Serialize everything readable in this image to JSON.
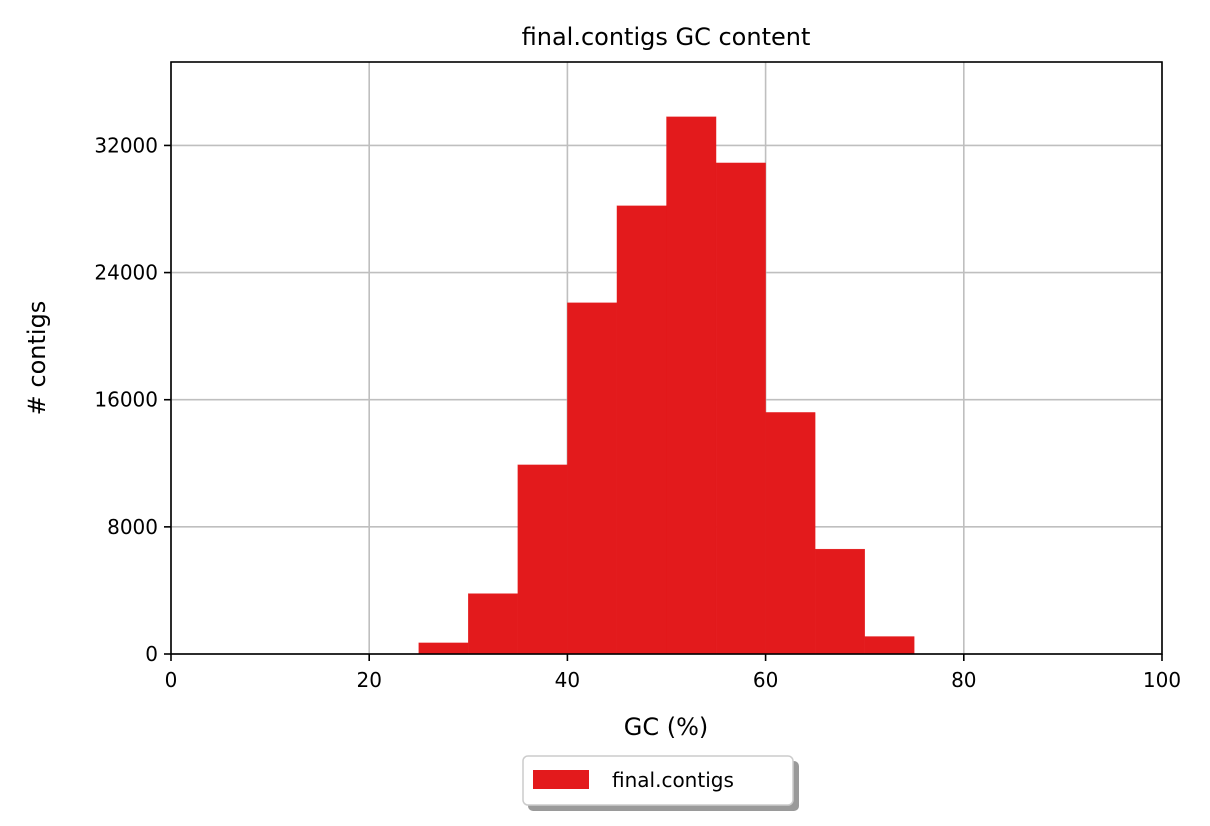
{
  "chart_data": {
    "type": "bar",
    "title": "final.contigs GC content",
    "xlabel": "GC (%)",
    "ylabel": "# contigs",
    "xlim": [
      0,
      100
    ],
    "ylim": [
      0,
      37250
    ],
    "xticks": [
      0,
      20,
      40,
      60,
      80,
      100
    ],
    "yticks": [
      0,
      8000,
      16000,
      24000,
      32000
    ],
    "grid": true,
    "legend_position": "bottom-center",
    "bin_width": 5,
    "series": [
      {
        "name": "final.contigs",
        "color": "#e31a1c",
        "bins": [
          {
            "x": 25,
            "value": 700
          },
          {
            "x": 30,
            "value": 3800
          },
          {
            "x": 35,
            "value": 11900
          },
          {
            "x": 40,
            "value": 22100
          },
          {
            "x": 45,
            "value": 28200
          },
          {
            "x": 50,
            "value": 33800
          },
          {
            "x": 55,
            "value": 30900
          },
          {
            "x": 60,
            "value": 15200
          },
          {
            "x": 65,
            "value": 6600
          },
          {
            "x": 70,
            "value": 1100
          }
        ]
      }
    ]
  }
}
